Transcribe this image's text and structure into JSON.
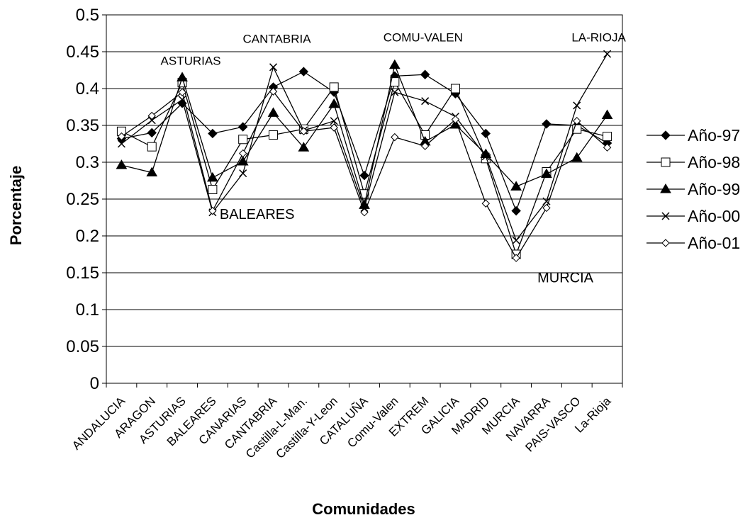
{
  "chart_data": {
    "type": "line",
    "title": "",
    "xlabel": "Comunidades",
    "ylabel": "Porcentaje",
    "ylim": [
      0,
      0.5
    ],
    "yticks": [
      0,
      0.05,
      0.1,
      0.15,
      0.2,
      0.25,
      0.3,
      0.35,
      0.4,
      0.45,
      0.5
    ],
    "grid": "horizontal",
    "legend_position": "right",
    "categories": [
      "ANDALUCIA",
      "ARAGON",
      "ASTURIAS",
      "BALEARES",
      "CANARIAS",
      "CANTABRIA",
      "Castilla-L-Man.",
      "Castilla-Y-Leon",
      "CATALUÑA",
      "Comu-Valen",
      "EXTREM",
      "GALICIA",
      "MADRID",
      "MURCIA",
      "NAVARRA",
      "PAIS-VASCO",
      "La-Rioja"
    ],
    "series": [
      {
        "name": "Año-97",
        "marker": "diamond-filled",
        "values": [
          0.332,
          0.34,
          0.38,
          0.339,
          0.348,
          0.402,
          0.423,
          0.395,
          0.282,
          0.417,
          0.419,
          0.393,
          0.339,
          0.234,
          0.352,
          0.35,
          0.326
        ]
      },
      {
        "name": "Año-98",
        "marker": "square-open",
        "values": [
          0.342,
          0.321,
          0.408,
          0.263,
          0.331,
          0.337,
          0.345,
          0.402,
          0.257,
          0.409,
          0.337,
          0.4,
          0.305,
          0.175,
          0.287,
          0.345,
          0.335
        ]
      },
      {
        "name": "Año-99",
        "marker": "triangle-filled",
        "values": [
          0.296,
          0.286,
          0.415,
          0.279,
          0.301,
          0.367,
          0.32,
          0.379,
          0.242,
          0.432,
          0.328,
          0.351,
          0.311,
          0.267,
          0.284,
          0.306,
          0.364
        ]
      },
      {
        "name": "Año-00",
        "marker": "x",
        "values": [
          0.325,
          0.357,
          0.385,
          0.232,
          0.285,
          0.429,
          0.343,
          0.356,
          0.238,
          0.395,
          0.383,
          0.362,
          0.308,
          0.194,
          0.247,
          0.377,
          0.447
        ]
      },
      {
        "name": "Año-01",
        "marker": "diamond-open",
        "values": [
          0.335,
          0.363,
          0.395,
          0.234,
          0.312,
          0.396,
          0.342,
          0.347,
          0.232,
          0.334,
          0.322,
          0.358,
          0.244,
          0.17,
          0.238,
          0.356,
          0.32
        ]
      }
    ],
    "annotations": [
      {
        "text": "ASTURIAS",
        "x": "ASTURIAS",
        "y": 0.432
      },
      {
        "text": "CANTABRIA",
        "x": "CANTABRIA",
        "y": 0.462
      },
      {
        "text": "COMU-VALEN",
        "x": "Comu-Valen",
        "y": 0.464
      },
      {
        "text": "LA-RIOJA",
        "x": "La-Rioja",
        "y": 0.464
      },
      {
        "text": "BALEARES",
        "x": "BALEARES",
        "y": 0.223
      },
      {
        "text": "MURCIA",
        "x": "MURCIA",
        "y": 0.137
      }
    ]
  }
}
